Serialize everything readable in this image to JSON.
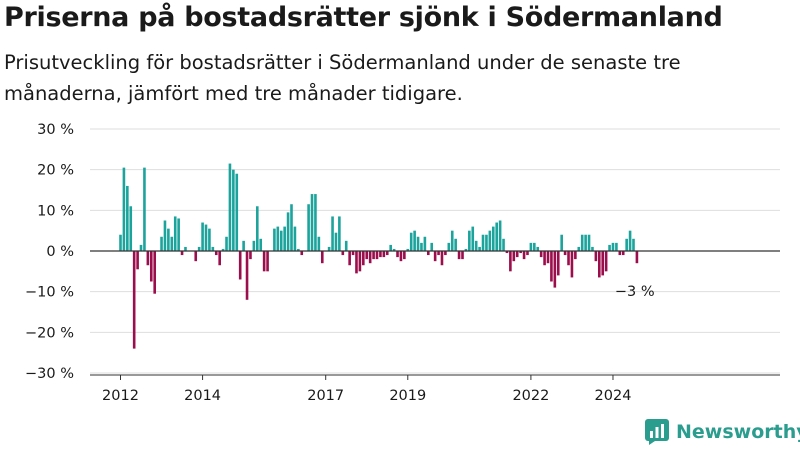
{
  "header": {
    "title": "Priserna på bostadsrätter sjönk i Södermanland",
    "subtitle": "Prisutveckling för bostadsrätter i Södermanland under de senaste tre månaderna, jämfört med tre månader tidigare."
  },
  "brand": {
    "name": "Newsworthy",
    "icon": "bar-chart-logo-icon",
    "color": "#2a9d8f"
  },
  "chart_data": {
    "type": "bar",
    "unit": "%",
    "ylim": [
      -30,
      30
    ],
    "y_ticks": [
      30,
      20,
      10,
      0,
      -10,
      -20,
      -30
    ],
    "y_tick_labels": [
      "30 %",
      "20 %",
      "10 %",
      "0 %",
      "−10 %",
      "−20 %",
      "−30 %"
    ],
    "x_ticks": [
      "2012",
      "2014",
      "2017",
      "2019",
      "2022",
      "2024"
    ],
    "grid": true,
    "colors": {
      "positive": "#1ba39c",
      "negative": "#9b0d4b"
    },
    "annotation": {
      "text": "−3 %",
      "value": -3
    },
    "x_start": "2012-01",
    "x_step": "month",
    "values": [
      4,
      20.5,
      16,
      11,
      -24,
      -4.5,
      1.5,
      20.5,
      -3.5,
      -7.5,
      -10.5,
      0,
      3.5,
      7.5,
      5.5,
      3.5,
      8.5,
      8,
      -1,
      1,
      0,
      0,
      -2.5,
      1,
      7,
      6.5,
      5.5,
      1,
      -1,
      -3.5,
      0.5,
      3.5,
      21.5,
      20,
      19,
      -7,
      2.5,
      -12,
      -2,
      2.5,
      11,
      3,
      -5,
      -5,
      0,
      5.5,
      6,
      5,
      6,
      9.5,
      11.5,
      6,
      0.5,
      -1,
      0,
      11.5,
      14,
      14,
      3.5,
      -3,
      0,
      1,
      8.5,
      4.5,
      8.5,
      -1,
      2.5,
      -3.5,
      -1,
      -5.5,
      -5,
      -3.5,
      -2,
      -3,
      -2,
      -2,
      -1.5,
      -1.5,
      -1,
      1.5,
      0.5,
      -1.5,
      -2.5,
      -2,
      0.5,
      4.5,
      5,
      3.5,
      2,
      3.5,
      -1,
      2,
      -2.5,
      -1,
      -3.5,
      -1,
      2,
      5,
      3,
      -2,
      -2,
      0.5,
      5,
      6,
      2.5,
      1,
      4,
      4,
      5,
      6,
      7,
      7.5,
      3,
      -0.5,
      -5,
      -2.5,
      -1.5,
      -0.5,
      -2,
      -1,
      2,
      2,
      1,
      -1.5,
      -3.5,
      -3,
      -7.5,
      -9,
      -6,
      4,
      -1,
      -3.5,
      -6.5,
      -2,
      1,
      4,
      4,
      4,
      1,
      -2.5,
      -6.5,
      -6,
      -5,
      1.5,
      2,
      2,
      -1,
      -1,
      3,
      5,
      3,
      -3
    ]
  }
}
